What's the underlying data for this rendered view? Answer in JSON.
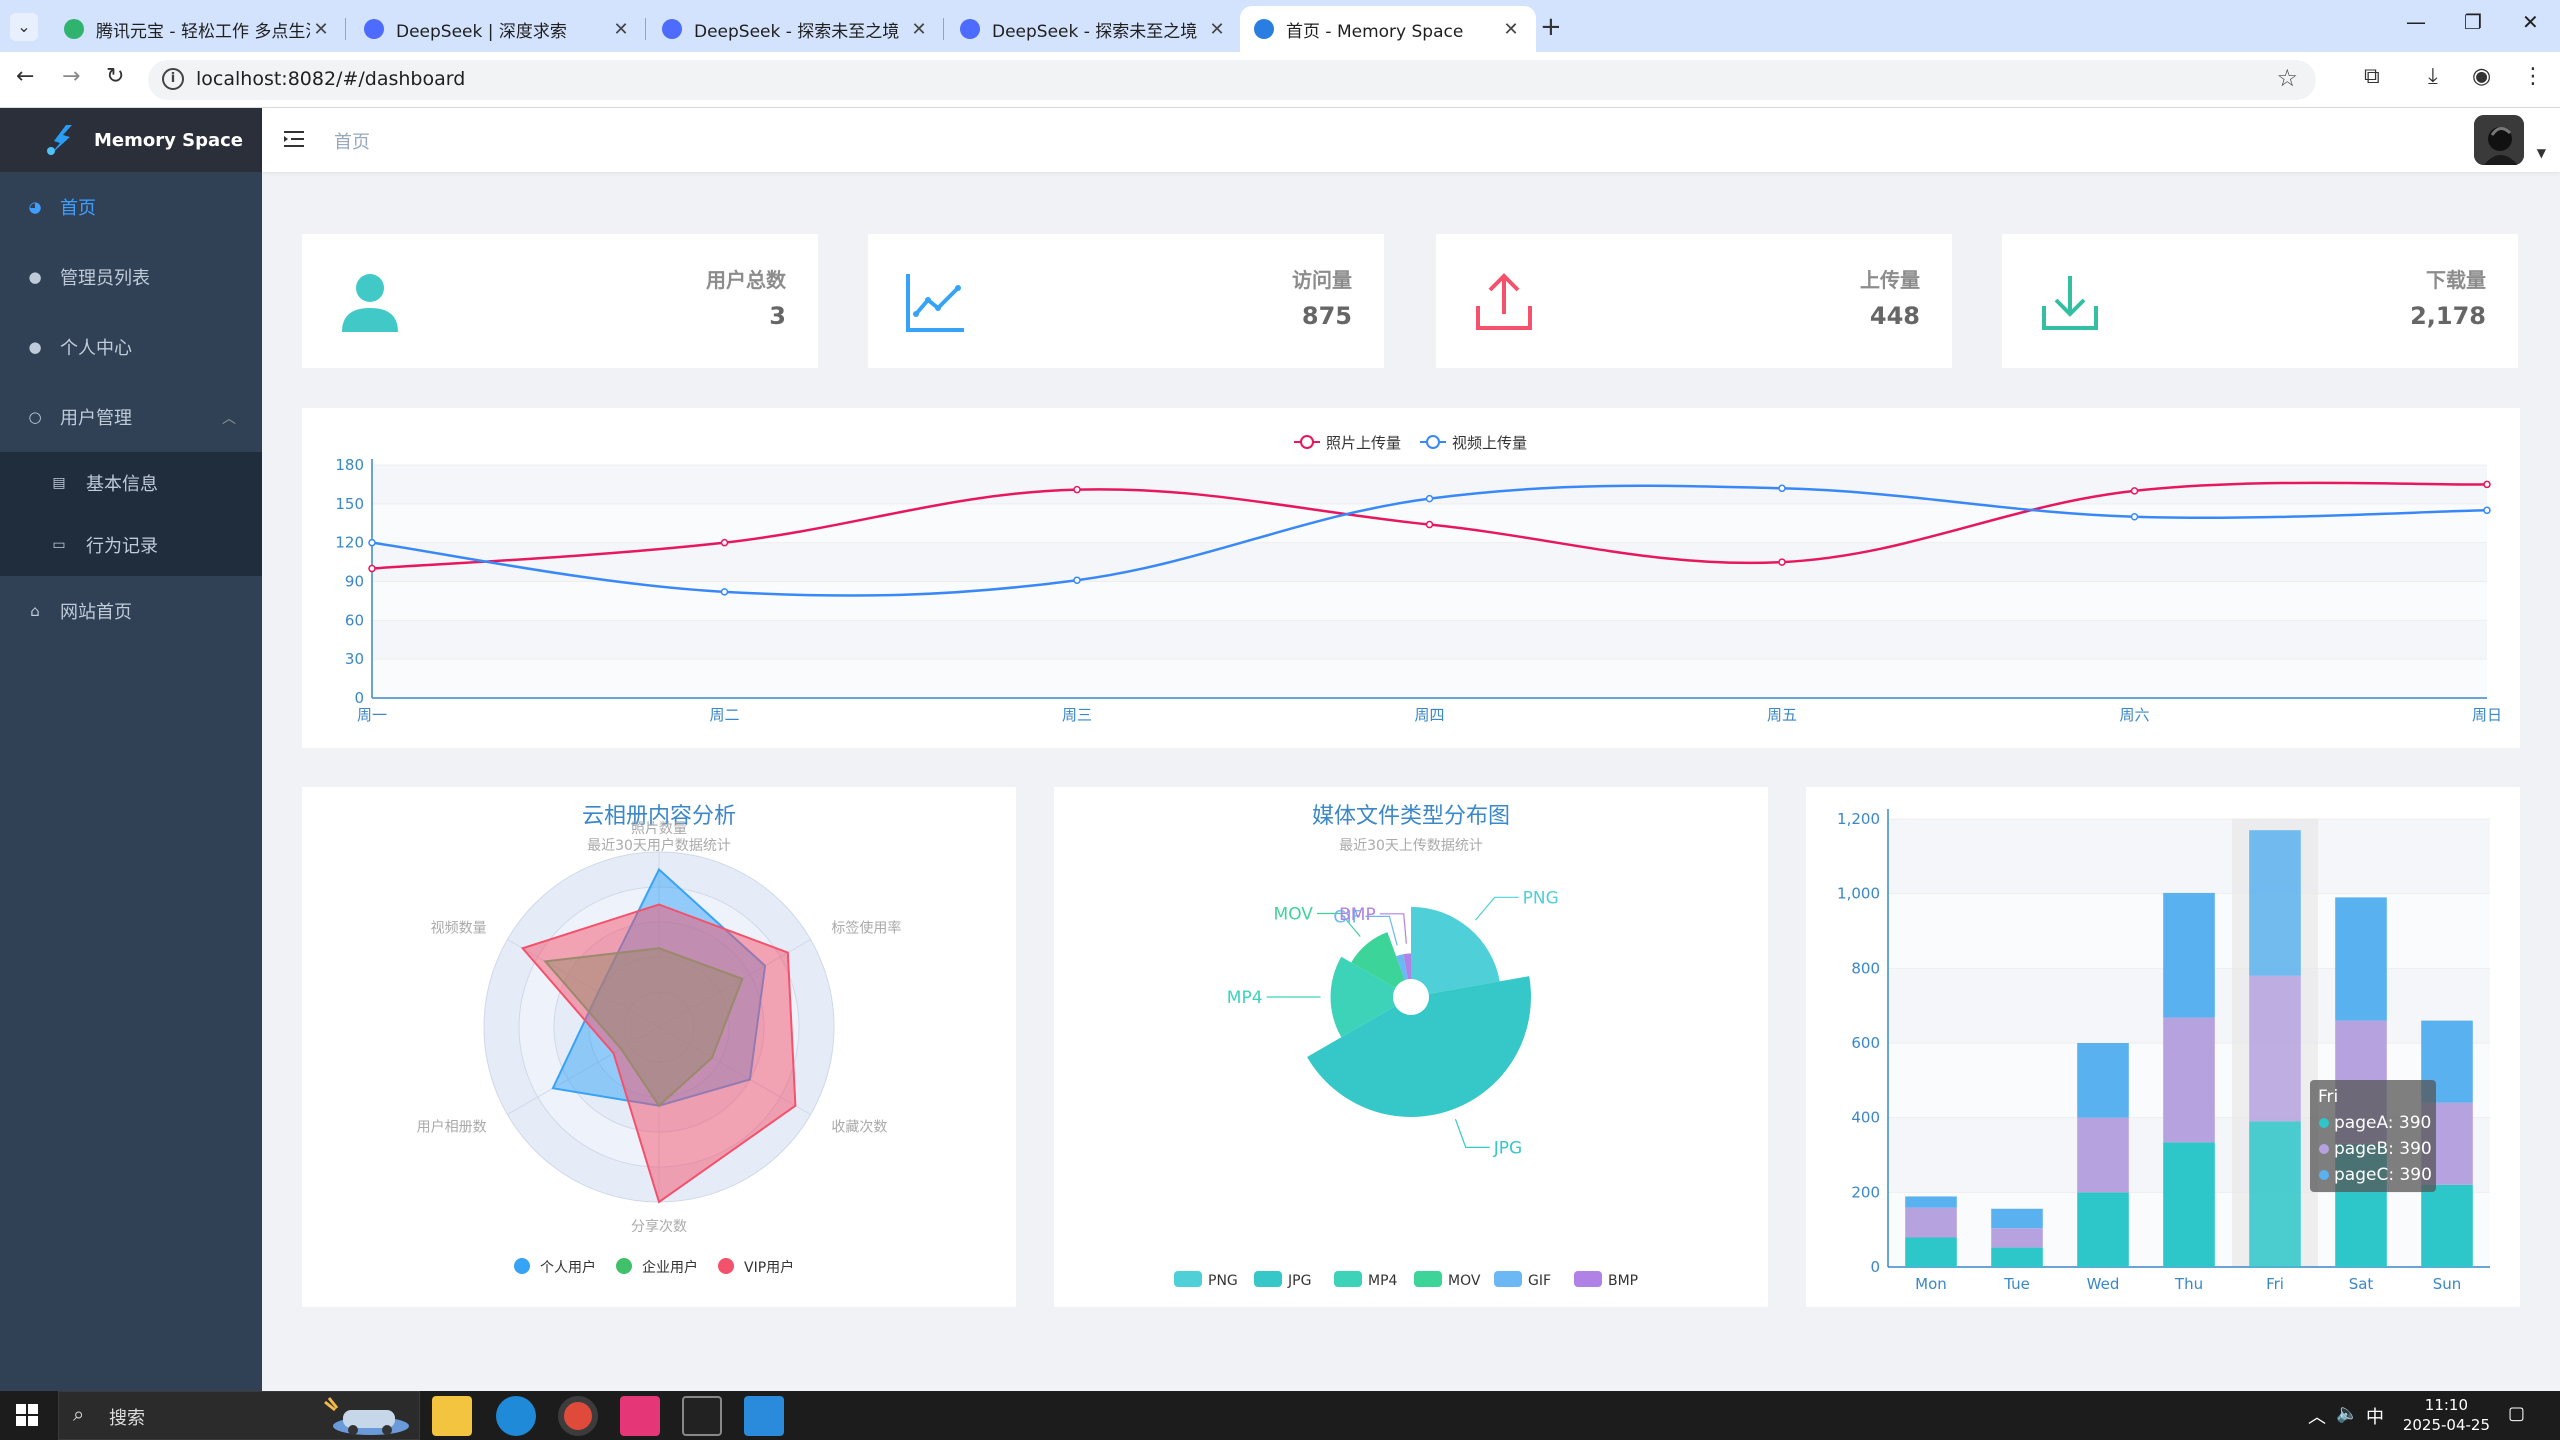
{
  "browser": {
    "tabs": [
      {
        "title": "腾讯元宝 - 轻松工作 多点生活",
        "color": "#2fb36e"
      },
      {
        "title": "DeepSeek | 深度求索",
        "color": "#4d6bfe"
      },
      {
        "title": "DeepSeek - 探索未至之境",
        "color": "#4d6bfe"
      },
      {
        "title": "DeepSeek - 探索未至之境",
        "color": "#4d6bfe"
      },
      {
        "title": "首页 - Memory Space",
        "color": "#2a7de1"
      }
    ],
    "url": "localhost:8082/#/dashboard"
  },
  "app": {
    "logo_text": "Memory Space",
    "breadcrumb": "首页"
  },
  "sidebar": {
    "items": [
      {
        "label": "首页",
        "icon": "dashboard-icon"
      },
      {
        "label": "管理员列表",
        "icon": "user-icon"
      },
      {
        "label": "个人中心",
        "icon": "user-icon"
      },
      {
        "label": "用户管理",
        "icon": "peoples-icon"
      },
      {
        "label": "网站首页",
        "icon": "home-icon"
      }
    ],
    "sub_items": [
      {
        "label": "基本信息",
        "icon": "table-icon"
      },
      {
        "label": "行为记录",
        "icon": "form-icon"
      }
    ]
  },
  "stats": [
    {
      "label": "用户总数",
      "value": "3",
      "icon": "peoples-icon",
      "color": "#40c9c6"
    },
    {
      "label": "访问量",
      "value": "875",
      "icon": "trend-icon",
      "color": "#36a3f7"
    },
    {
      "label": "上传量",
      "value": "448",
      "icon": "upload-icon",
      "color": "#f4516c"
    },
    {
      "label": "下载量",
      "value": "2,178",
      "icon": "download-icon",
      "color": "#34bfa3"
    }
  ],
  "chart_data": [
    {
      "type": "line",
      "categories": [
        "周一",
        "周二",
        "周三",
        "周四",
        "周五",
        "周六",
        "周日"
      ],
      "series": [
        {
          "name": "照片上传量",
          "values": [
            100,
            120,
            161,
            134,
            105,
            160,
            165
          ],
          "color": "#e8175d"
        },
        {
          "name": "视频上传量",
          "values": [
            120,
            82,
            91,
            154,
            162,
            140,
            145
          ],
          "color": "#3888fa"
        }
      ],
      "yticks": [
        "0",
        "30",
        "60",
        "90",
        "120",
        "150",
        "180"
      ],
      "ylim": [
        0,
        180
      ],
      "legend": "top-center"
    },
    {
      "type": "radar",
      "title": "云相册内容分析",
      "subtitle": "最近30天用户数据统计",
      "indicators": [
        "照片数量",
        "标签使用率",
        "收藏次数",
        "分享次数",
        "用户相册数",
        "视频数量"
      ],
      "max": 100,
      "series": [
        {
          "name": "个人用户",
          "values": [
            90,
            70,
            60,
            45,
            70,
            40
          ],
          "color": "#36a3f7"
        },
        {
          "name": "企业用户",
          "values": [
            45,
            55,
            35,
            45,
            25,
            75
          ],
          "color": "#40c06b"
        },
        {
          "name": "VIP用户",
          "values": [
            70,
            85,
            90,
            100,
            30,
            90
          ],
          "color": "#f4516c"
        }
      ],
      "legend": "bottom"
    },
    {
      "type": "pie",
      "title": "媒体文件类型分布图",
      "subtitle": "最近30天上传数据统计",
      "slices": [
        {
          "name": "PNG",
          "value": 320,
          "color": "#4fd0d9"
        },
        {
          "name": "JPG",
          "value": 640,
          "color": "#36c8c8"
        },
        {
          "name": "MP4",
          "value": 240,
          "color": "#3cd3b8"
        },
        {
          "name": "MOV",
          "value": 160,
          "color": "#3dd49a"
        },
        {
          "name": "GIF",
          "value": 40,
          "color": "#6bb8f5"
        },
        {
          "name": "BMP",
          "value": 40,
          "color": "#b082e6"
        }
      ],
      "legend": "bottom"
    },
    {
      "type": "bar",
      "stacked": true,
      "categories": [
        "Mon",
        "Tue",
        "Wed",
        "Thu",
        "Fri",
        "Sat",
        "Sun"
      ],
      "series": [
        {
          "name": "pageA",
          "values": [
            79,
            52,
            200,
            334,
            390,
            330,
            220
          ],
          "color": "#2ec7c9"
        },
        {
          "name": "pageB",
          "values": [
            80,
            52,
            200,
            334,
            390,
            330,
            220
          ],
          "color": "#b6a2de"
        },
        {
          "name": "pageC",
          "values": [
            30,
            52,
            200,
            334,
            390,
            330,
            220
          ],
          "color": "#5ab1ef"
        }
      ],
      "yticks": [
        "0",
        "200",
        "400",
        "600",
        "800",
        "1,000",
        "1,200"
      ],
      "ylim": [
        0,
        1200
      ],
      "tooltip": {
        "title": "Fri",
        "lines": [
          "pageA: 390",
          "pageB: 390",
          "pageC: 390"
        ]
      }
    }
  ],
  "taskbar": {
    "search": "搜索",
    "time": "11:10",
    "date": "2025-04-25",
    "ime": "中"
  }
}
